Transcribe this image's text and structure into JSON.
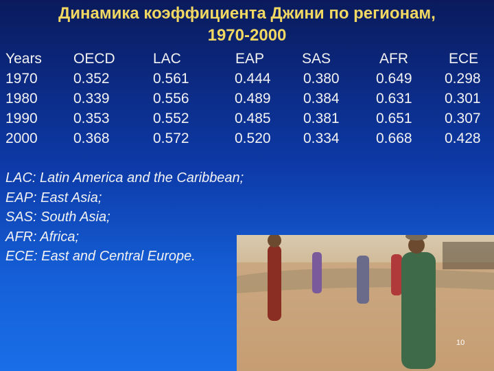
{
  "header": {
    "title_line1": "Динамика коэффициента Джини по регионам,",
    "title_line2": "1970-2000"
  },
  "table": {
    "columns": [
      "Years",
      "OECD",
      "LAC",
      "EAP",
      "SAS",
      "AFR",
      "ECE"
    ],
    "rows": [
      [
        "1970",
        "0.352",
        "0.561",
        "0.444",
        "0.380",
        "0.649",
        "0.298"
      ],
      [
        "1980",
        "0.339",
        "0.556",
        "0.489",
        "0.384",
        "0.631",
        "0.301"
      ],
      [
        "1990",
        "0.353",
        "0.552",
        "0.485",
        "0.381",
        "0.651",
        "0.307"
      ],
      [
        "2000",
        "0.368",
        "0.572",
        "0.520",
        "0.334",
        "0.668",
        "0.428"
      ]
    ]
  },
  "notes": [
    "LAC: Latin America and the Caribbean;",
    "EAP: East Asia;",
    "SAS: South Asia;",
    "AFR: Africa;",
    "ECE: East and Central Europe."
  ],
  "page_number": "10"
}
